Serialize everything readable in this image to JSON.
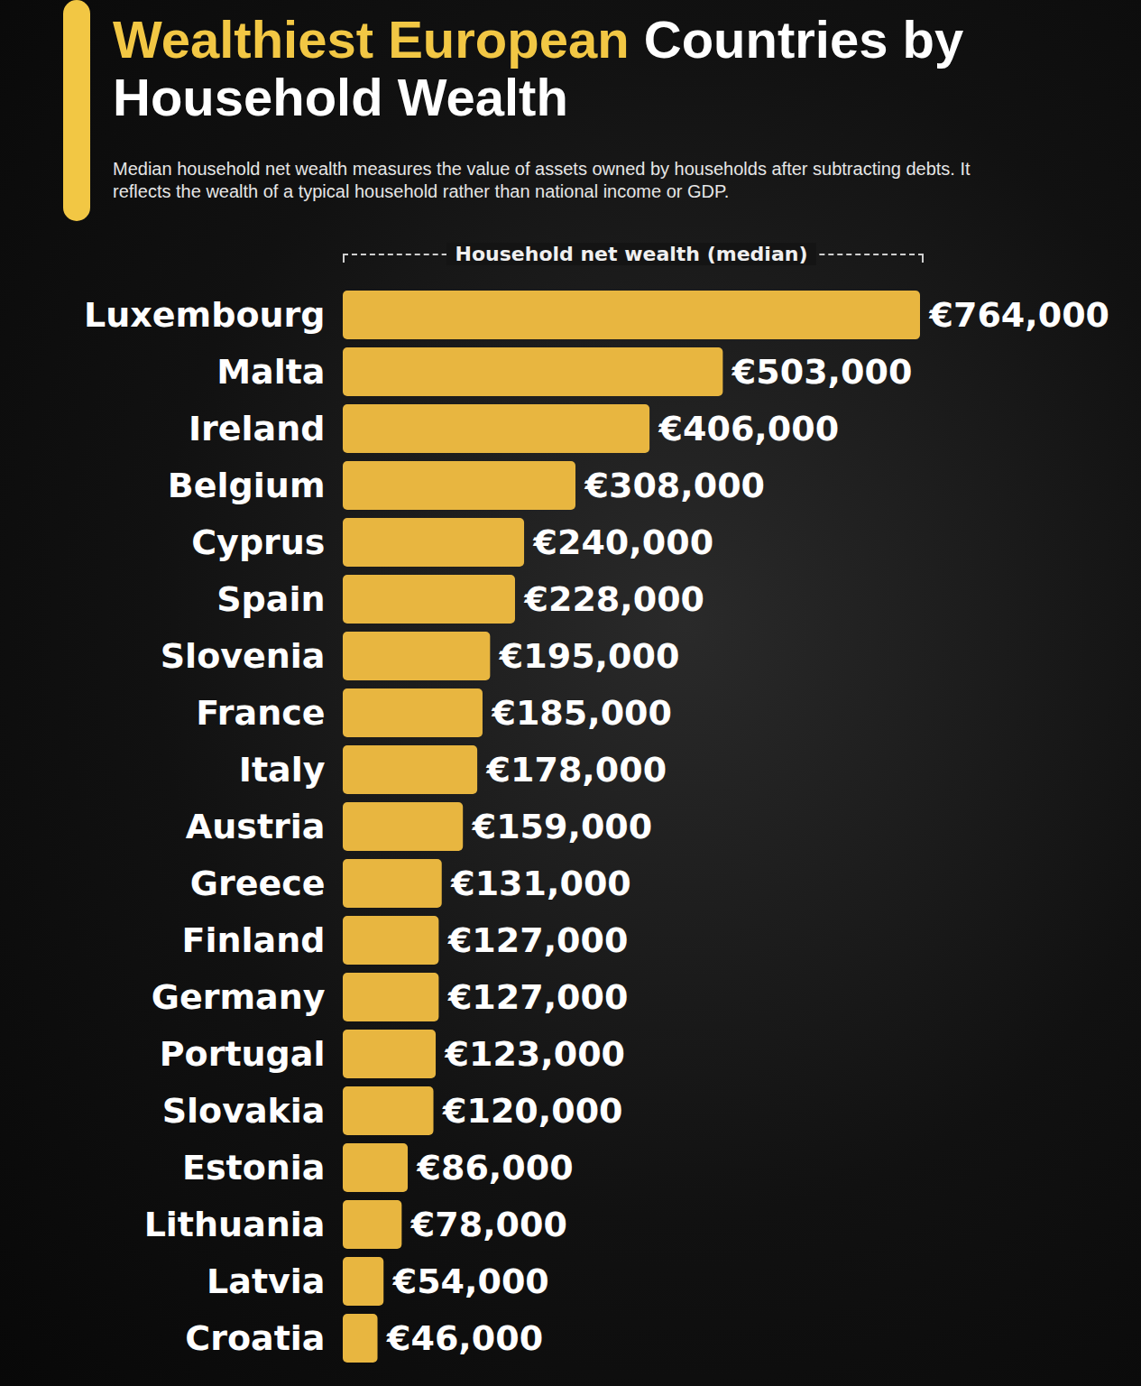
{
  "chart_data": {
    "type": "bar",
    "title": "Wealthiest European Countries by Household Wealth",
    "subtitle": "Median household net wealth measures the value of assets owned by households after subtracting debts. It reflects the wealth of a typical household rather than national income or GDP.",
    "x_label": "Household net wealth (median)",
    "orientation": "horizontal",
    "categories": [
      "Luxembourg",
      "Malta",
      "Ireland",
      "Belgium",
      "Cyprus",
      "Spain",
      "Slovenia",
      "France",
      "Italy",
      "Austria",
      "Greece",
      "Finland",
      "Germany",
      "Portugal",
      "Slovakia",
      "Estonia",
      "Lithuania",
      "Latvia",
      "Croatia"
    ],
    "values": [
      764000,
      503000,
      406000,
      308000,
      240000,
      228000,
      195000,
      185000,
      178000,
      159000,
      131000,
      127000,
      127000,
      123000,
      120000,
      86000,
      78000,
      54000,
      46000
    ],
    "value_labels": [
      "€764,000",
      "€503,000",
      "€406,000",
      "€308,000",
      "€240,000",
      "€228,000",
      "€195,000",
      "€185,000",
      "€178,000",
      "€159,000",
      "€131,000",
      "€127,000",
      "€127,000",
      "€123,000",
      "€120,000",
      "€86,000",
      "€78,000",
      "€54,000",
      "€46,000"
    ],
    "color": "#e8b640",
    "xlim": [
      0,
      764000
    ],
    "data_labels": true,
    "tick_labels": "y",
    "grid": false
  }
}
